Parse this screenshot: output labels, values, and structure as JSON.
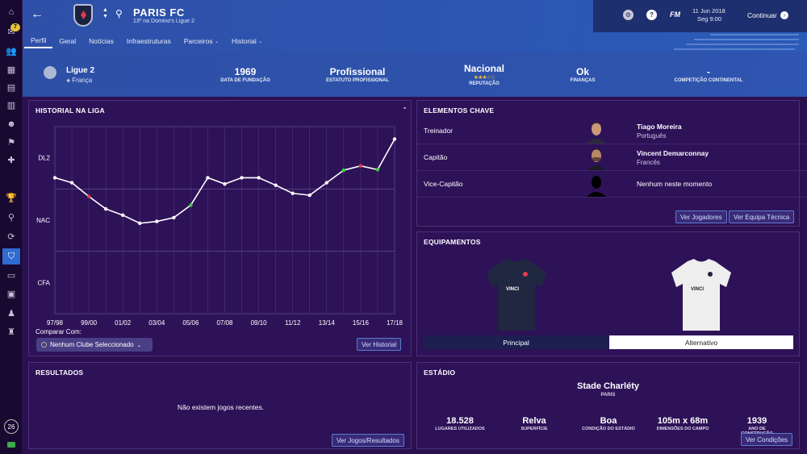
{
  "sidebar": {
    "inbox_badge": "7",
    "days_counter": "26",
    "icons": [
      "home-icon",
      "inbox-icon",
      "squad-icon",
      "tactics-icon",
      "team-report-icon",
      "scouting-icon",
      "staff-icon",
      "training-icon",
      "medical-icon",
      "competitions-icon",
      "search-icon",
      "transfers-icon",
      "club-icon",
      "finances-icon",
      "club-vision-icon",
      "manager-icon"
    ]
  },
  "header": {
    "club_name": "PARIS FC",
    "club_subtitle": "13º na Domino's Ligue 2",
    "nav_tabs": [
      {
        "label": "Perfil",
        "selected": true
      },
      {
        "label": "Geral",
        "selected": false
      },
      {
        "label": "Notícias",
        "selected": false
      },
      {
        "label": "Infraestruturas",
        "selected": false
      },
      {
        "label": "Parceiros",
        "selected": false,
        "dropdown": true
      },
      {
        "label": "Historial",
        "selected": false,
        "dropdown": true
      }
    ],
    "fm_label": "FM",
    "date_line1": "11 Jun 2018",
    "date_line2": "Seg 9:00",
    "continue_label": "Continuar"
  },
  "info": {
    "league_name": "Ligue 2",
    "league_country": "França",
    "founded_value": "1969",
    "founded_label": "DATA DE FUNDAÇÃO",
    "status_value": "Profissional",
    "status_label": "ESTATUTO PROFISSIONAL",
    "reputation_value": "Nacional",
    "reputation_label": "REPUTAÇÃO",
    "reputation_stars": "★★★☆☆",
    "finances_value": "Ok",
    "finances_label": "FINANÇAS",
    "continental_value": "-",
    "continental_label": "COMPETIÇÃO CONTINENTAL"
  },
  "league_history": {
    "title": "HISTORIAL NA LIGA",
    "compare_label": "Comparar Com:",
    "compare_value": "Nenhum Clube Seleccionado",
    "button_label": "Ver Historial",
    "chart_data": {
      "type": "line",
      "title": "HISTORIAL NA LIGA",
      "y_categories": [
        "DL2",
        "NAC",
        "CFA"
      ],
      "x_tick_labels": [
        "97/98",
        "99/00",
        "01/02",
        "03/04",
        "05/06",
        "07/08",
        "09/10",
        "11/12",
        "13/14",
        "15/16",
        "17/18"
      ],
      "seasons": [
        "97/98",
        "98/99",
        "99/00",
        "00/01",
        "01/02",
        "02/03",
        "03/04",
        "04/05",
        "05/06",
        "06/07",
        "07/08",
        "08/09",
        "09/10",
        "10/11",
        "11/12",
        "12/13",
        "13/14",
        "14/15",
        "15/16",
        "16/17",
        "17/18"
      ],
      "positions": [
        0.32,
        0.4,
        0.62,
        0.82,
        0.92,
        1.05,
        1.02,
        0.96,
        0.76,
        0.32,
        0.42,
        0.32,
        0.32,
        0.44,
        0.57,
        0.6,
        0.4,
        0.2,
        0.13,
        0.19,
        -0.3
      ],
      "marker_colors": [
        "white",
        "white",
        "red",
        "white",
        "white",
        "white",
        "white",
        "white",
        "green",
        "white",
        "white",
        "white",
        "white",
        "white",
        "white",
        "white",
        "white",
        "green",
        "red",
        "green",
        "white"
      ],
      "grid": true
    }
  },
  "key_people": {
    "title": "ELEMENTOS CHAVE",
    "rows": [
      {
        "role": "Treinador",
        "name": "Tiago Moreira",
        "nationality": "Português"
      },
      {
        "role": "Capitão",
        "name": "Vincent Demarconnay",
        "nationality": "Francês"
      },
      {
        "role": "Vice-Capitão",
        "name": "Nenhum neste momento",
        "nationality": ""
      }
    ],
    "btn_players": "Ver Jogadores",
    "btn_staff": "Ver Equipa Técnica"
  },
  "kits": {
    "title": "EQUIPAMENTOS",
    "home_label": "Principal",
    "away_label": "Alternativo",
    "sponsor": "VINCI",
    "home_color": "#1f2840",
    "away_color": "#eeeeee"
  },
  "results": {
    "title": "RESULTADOS",
    "empty_message": "Não existem jogos recentes.",
    "button_label": "Ver Jogos/Resultados"
  },
  "stadium": {
    "title": "ESTÁDIO",
    "name": "Stade Charléty",
    "city": "PARIS",
    "stats": [
      {
        "value": "18.528",
        "label": "LUGARES UTILIZADOS"
      },
      {
        "value": "Relva",
        "label": "SUPERFÍCIE"
      },
      {
        "value": "Boa",
        "label": "CONDIÇÃO DO ESTÁDIO"
      },
      {
        "value": "105m x 68m",
        "label": "DIMENSÕES DO CAMPO"
      },
      {
        "value": "1939",
        "label": "ANO DE CONSTRUÇÃO"
      }
    ],
    "button_label": "Ver Condições"
  }
}
